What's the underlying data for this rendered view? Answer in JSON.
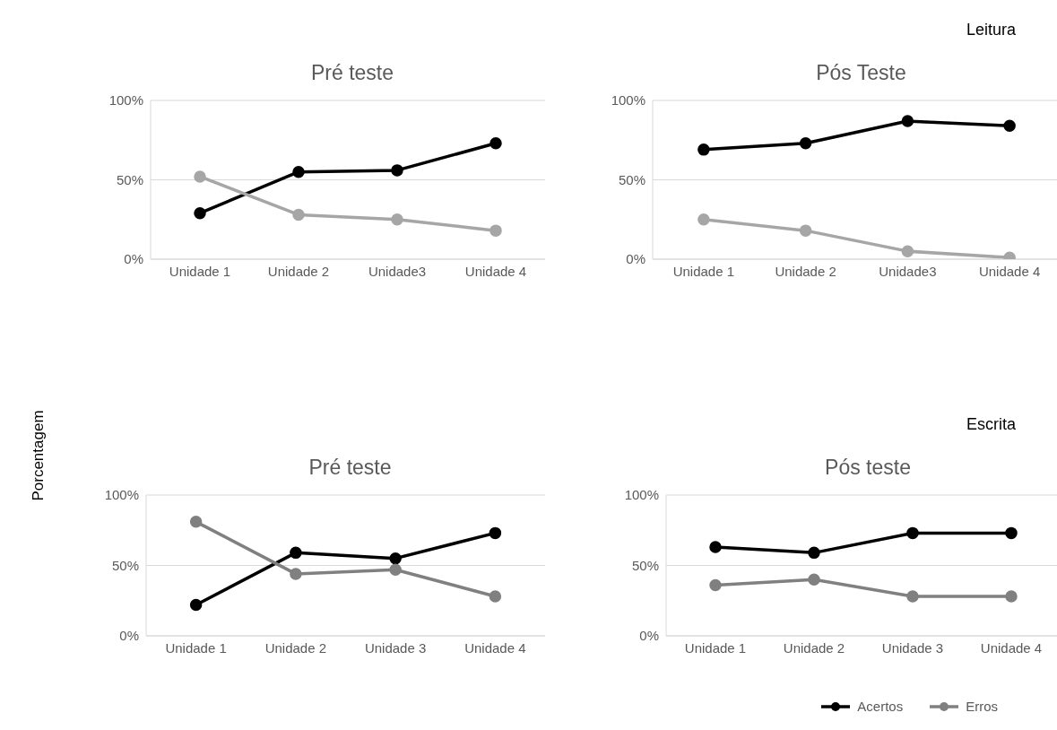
{
  "chart_data": [
    {
      "type": "line",
      "title": "Pré teste",
      "categories": [
        "Unidade 1",
        "Unidade 2",
        "Unidade3",
        "Unidade 4"
      ],
      "series": [
        {
          "color": "#000000",
          "values": [
            29,
            55,
            56,
            73
          ]
        },
        {
          "color": "#a6a6a6",
          "values": [
            52,
            28,
            25,
            18
          ]
        }
      ],
      "ylim": [
        0,
        100
      ],
      "yticks": [
        {
          "value": 0,
          "label": "0%"
        },
        {
          "value": 50,
          "label": "50%"
        },
        {
          "value": 100,
          "label": "100%"
        }
      ],
      "grid": "y",
      "marker": "circle",
      "line_style": "solid"
    },
    {
      "type": "line",
      "title": "Pós Teste",
      "annotations": [
        "Leitura"
      ],
      "categories": [
        "Unidade 1",
        "Unidade 2",
        "Unidade3",
        "Unidade 4"
      ],
      "series": [
        {
          "color": "#000000",
          "values": [
            69,
            73,
            87,
            84
          ]
        },
        {
          "color": "#a6a6a6",
          "values": [
            25,
            18,
            5,
            1
          ]
        }
      ],
      "ylim": [
        0,
        100
      ],
      "yticks": [
        {
          "value": 0,
          "label": "0%"
        },
        {
          "value": 50,
          "label": "50%"
        },
        {
          "value": 100,
          "label": "100%"
        }
      ],
      "grid": "y",
      "marker": "circle",
      "line_style": "solid"
    },
    {
      "type": "line",
      "title": "Pré teste",
      "ylabel": "Porcentagem",
      "categories": [
        "Unidade 1",
        "Unidade 2",
        "Unidade 3",
        "Unidade 4"
      ],
      "series": [
        {
          "color": "#000000",
          "values": [
            22,
            59,
            55,
            73
          ]
        },
        {
          "color": "#808080",
          "values": [
            81,
            44,
            47,
            28
          ]
        }
      ],
      "ylim": [
        0,
        100
      ],
      "yticks": [
        {
          "value": 0,
          "label": "0%"
        },
        {
          "value": 50,
          "label": "50%"
        },
        {
          "value": 100,
          "label": "100%"
        }
      ],
      "grid": "y",
      "marker": "circle",
      "line_style": "solid"
    },
    {
      "type": "line",
      "title": "Pós teste",
      "annotations": [
        "Escrita"
      ],
      "categories": [
        "Unidade 1",
        "Unidade 2",
        "Unidade 3",
        "Unidade 4"
      ],
      "series": [
        {
          "name": "Acertos",
          "color": "#000000",
          "values": [
            63,
            59,
            73,
            73
          ]
        },
        {
          "name": "Erros",
          "color": "#808080",
          "values": [
            36,
            40,
            28,
            28
          ]
        }
      ],
      "ylim": [
        0,
        100
      ],
      "yticks": [
        {
          "value": 0,
          "label": "0%"
        },
        {
          "value": 50,
          "label": "50%"
        },
        {
          "value": 100,
          "label": "100%"
        }
      ],
      "grid": "y",
      "marker": "circle",
      "line_style": "solid",
      "legend": "bottom right"
    }
  ]
}
